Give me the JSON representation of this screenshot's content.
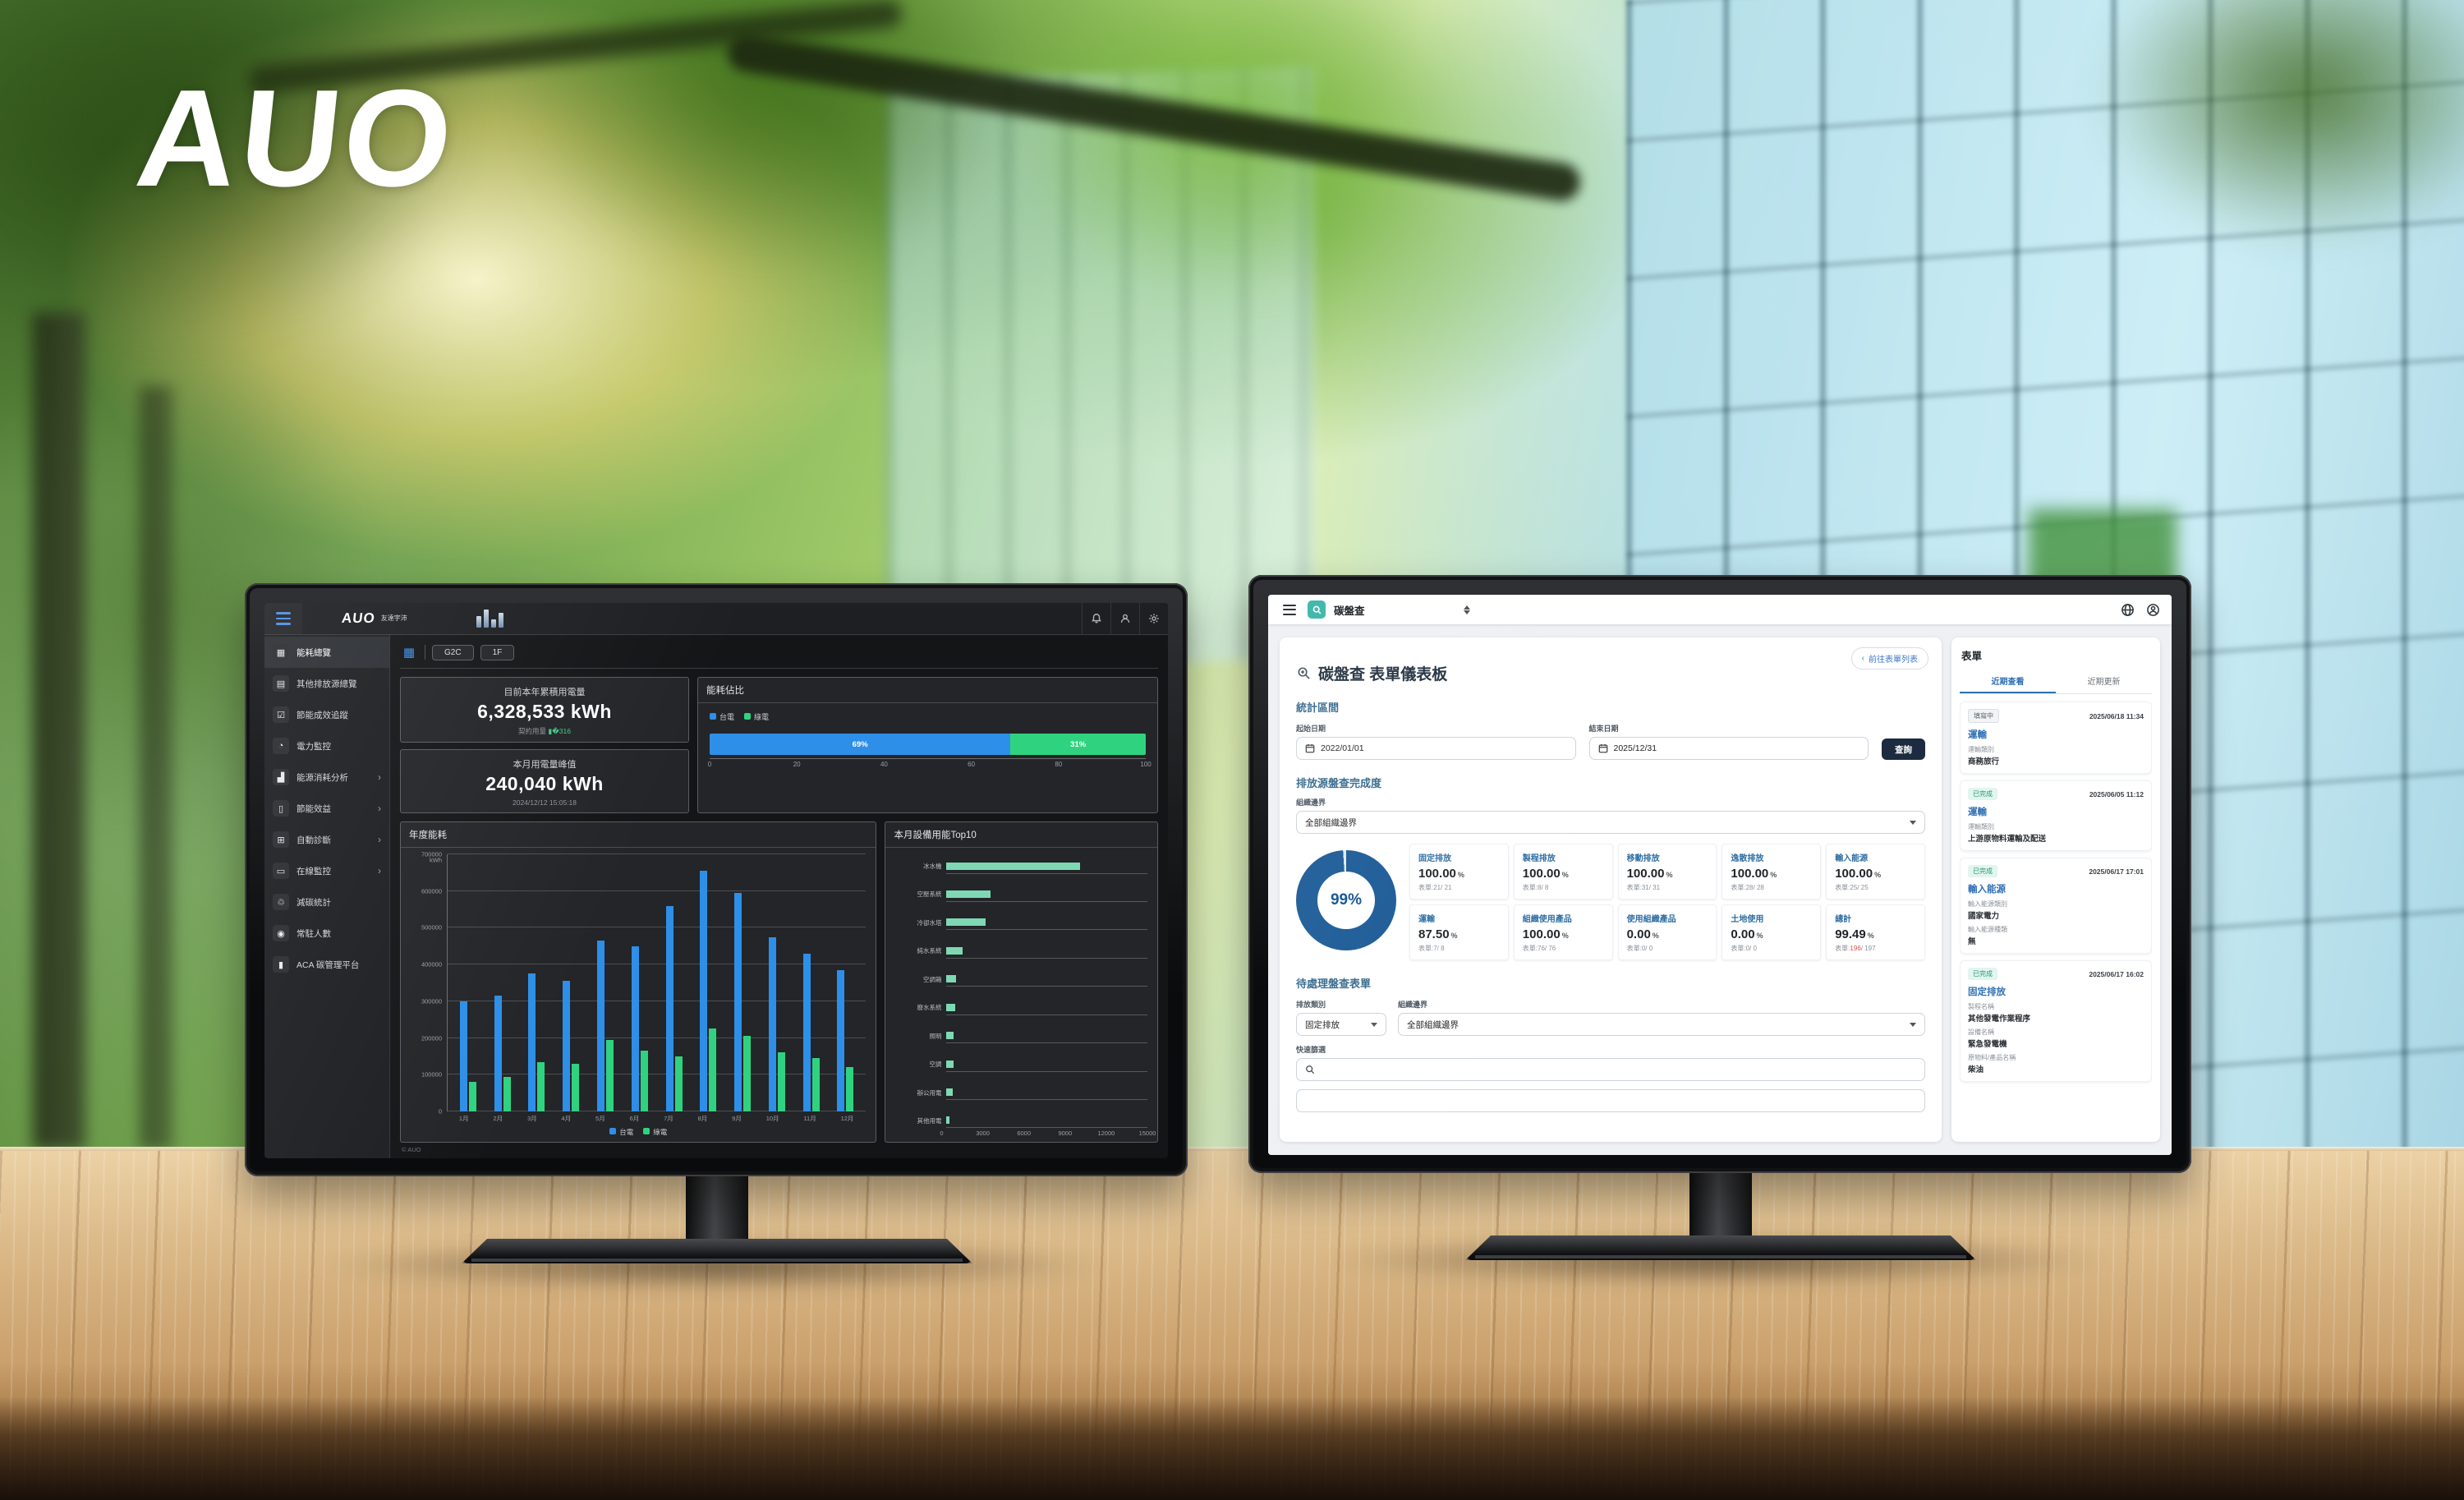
{
  "scene": {
    "brand": "AUO"
  },
  "left_monitor": {
    "header": {
      "logo_primary": "AUO",
      "logo_sub": "友達宇沛"
    },
    "sidebar": {
      "items": [
        {
          "label": "能耗總覽",
          "icon": "overview",
          "glyph": "▦",
          "active": true,
          "arrow": false
        },
        {
          "label": "其他排放源總覽",
          "icon": "emission-sources",
          "glyph": "▤",
          "active": false,
          "arrow": false
        },
        {
          "label": "節能成效追蹤",
          "icon": "saving-tracking",
          "glyph": "☑",
          "active": false,
          "arrow": false
        },
        {
          "label": "電力監控",
          "icon": "power-monitor",
          "glyph": "◔",
          "active": false,
          "arrow": false
        },
        {
          "label": "能源消耗分析",
          "icon": "energy-analysis",
          "glyph": "▟",
          "active": false,
          "arrow": true
        },
        {
          "label": "節能效益",
          "icon": "saving-benefit",
          "glyph": "▯",
          "active": false,
          "arrow": true
        },
        {
          "label": "自動診斷",
          "icon": "auto-diagnosis",
          "glyph": "⊞",
          "active": false,
          "arrow": true
        },
        {
          "label": "在線監控",
          "icon": "online-monitor",
          "glyph": "▭",
          "active": false,
          "arrow": true
        },
        {
          "label": "減碳統計",
          "icon": "carbon-reduction",
          "glyph": "♲",
          "active": false,
          "arrow": false
        },
        {
          "label": "常駐人數",
          "icon": "occupancy",
          "glyph": "◉",
          "active": false,
          "arrow": false
        },
        {
          "label": "ACA 碳管理平台",
          "icon": "aca-platform",
          "glyph": "▮",
          "active": false,
          "arrow": false
        }
      ]
    },
    "toolbar": {
      "chips": [
        "G2C",
        "1F"
      ]
    },
    "stats": [
      {
        "title": "目前本年累積用電量",
        "value": "6,328,533 kWh",
        "note": "契約用量"
      },
      {
        "title": "本月用電量峰值",
        "value": "240,040 kWh",
        "note": "2024/12/12 15:05:18"
      }
    ],
    "ratio_chart": {
      "type": "bar",
      "title": "能耗佔比",
      "legend": [
        {
          "label": "台電",
          "color": "#2e8fe8"
        },
        {
          "label": "綠電",
          "color": "#2fd37f"
        }
      ],
      "segments": [
        {
          "label": "台電",
          "value": 69,
          "display": "69%",
          "color": "#2e8fe8"
        },
        {
          "label": "綠電",
          "value": 31,
          "display": "31%",
          "color": "#2fd37f"
        }
      ],
      "ticks": [
        0,
        20,
        40,
        60,
        80,
        100
      ]
    },
    "annual_chart": {
      "type": "bar",
      "title": "年度能耗",
      "ylabel_unit": "kWh",
      "ymax": 700000,
      "ytick_step": 100000,
      "categories": [
        "1月",
        "2月",
        "3月",
        "4月",
        "5月",
        "6月",
        "7月",
        "8月",
        "9月",
        "10月",
        "11月",
        "12月"
      ],
      "series": [
        {
          "name": "台電",
          "color": "#2e8fe8",
          "values": [
            300000,
            315000,
            375000,
            355000,
            465000,
            450000,
            560000,
            655000,
            595000,
            475000,
            430000,
            385000
          ]
        },
        {
          "name": "綠電",
          "color": "#2fd37f",
          "values": [
            80000,
            95000,
            135000,
            130000,
            195000,
            165000,
            150000,
            225000,
            205000,
            160000,
            145000,
            120000
          ]
        }
      ]
    },
    "top10_chart": {
      "type": "bar",
      "title": "本月設備用能Top10",
      "xmax": 15000,
      "ticks": [
        0,
        3000,
        6000,
        9000,
        12000,
        15000
      ],
      "categories": [
        "冰水機",
        "空壓系統",
        "冷卻水塔",
        "純水系統",
        "空調箱",
        "廢水系統",
        "照明",
        "空調",
        "辦公用電",
        "其他用電"
      ],
      "values": [
        10000,
        3300,
        2900,
        1200,
        700,
        650,
        550,
        500,
        450,
        200
      ],
      "bar_color": "#7fd8b4"
    },
    "footer": {
      "copyright": "© AUO"
    }
  },
  "right_monitor": {
    "topbar": {
      "app_title": "碳盤查"
    },
    "page": {
      "title": "碳盤查 表單儀表板",
      "back_button": "前往表單列表"
    },
    "period": {
      "heading": "統計區間",
      "start_label": "起始日期",
      "start_value": "2022/01/01",
      "end_label": "結束日期",
      "end_value": "2025/12/31",
      "search_button": "查詢"
    },
    "completeness": {
      "heading": "排放源盤查完成度",
      "boundary_label": "組織邊界",
      "boundary_value": "全部組織邊界",
      "donut_percent": "99%",
      "cards": [
        {
          "title": "固定排放",
          "value": "100.00",
          "sub": "表單:21/ 21"
        },
        {
          "title": "製程排放",
          "value": "100.00",
          "sub": "表單:8/ 8"
        },
        {
          "title": "移動排放",
          "value": "100.00",
          "sub": "表單:31/ 31"
        },
        {
          "title": "逸散排放",
          "value": "100.00",
          "sub": "表單:28/ 28"
        },
        {
          "title": "輸入能源",
          "value": "100.00",
          "sub": "表單:25/ 25"
        },
        {
          "title": "運輸",
          "value": "87.50",
          "sub": "表單:7/ 8"
        },
        {
          "title": "組織使用產品",
          "value": "100.00",
          "sub": "表單:76/ 76"
        },
        {
          "title": "使用組織產品",
          "value": "0.00",
          "sub": "表單:0/ 0"
        },
        {
          "title": "土地使用",
          "value": "0.00",
          "sub": "表單:0/ 0"
        },
        {
          "title": "總計",
          "value": "99.49",
          "sub_prefix": "表單:",
          "sub_red": "196",
          "sub_rest": "/ 197"
        }
      ]
    },
    "pending": {
      "heading": "待處理盤查表單",
      "category_label": "排放類別",
      "category_value": "固定排放",
      "boundary_label": "組織邊界",
      "boundary_value": "全部組織邊界",
      "filter_label": "快速篩選"
    },
    "forms_panel": {
      "title": "表單",
      "tabs": [
        {
          "label": "近期查看",
          "active": true
        },
        {
          "label": "近期更新",
          "active": false
        }
      ],
      "cards": [
        {
          "status": "填寫中",
          "status_type": "progress",
          "datetime": "2025/06/18 11:34",
          "title": "運輸",
          "fields": [
            {
              "label": "運輸類別",
              "value": "商務旅行"
            }
          ]
        },
        {
          "status": "已完成",
          "status_type": "done",
          "datetime": "2025/06/05 11:12",
          "title": "運輸",
          "fields": [
            {
              "label": "運輸類別",
              "value": "上游原物料運輸及配送"
            }
          ]
        },
        {
          "status": "已完成",
          "status_type": "done",
          "datetime": "2025/06/17 17:01",
          "title": "輸入能源",
          "fields": [
            {
              "label": "輸入能源類別",
              "value": "國家電力"
            },
            {
              "label": "輸入能源種類",
              "value": "無"
            }
          ]
        },
        {
          "status": "已完成",
          "status_type": "done",
          "datetime": "2025/06/17 16:02",
          "title": "固定排放",
          "fields": [
            {
              "label": "製程名稱",
              "value": "其他發電作業程序"
            },
            {
              "label": "設備名稱",
              "value": "緊急發電機"
            },
            {
              "label": "原物料/產品名稱",
              "value": "柴油"
            }
          ]
        }
      ]
    }
  }
}
